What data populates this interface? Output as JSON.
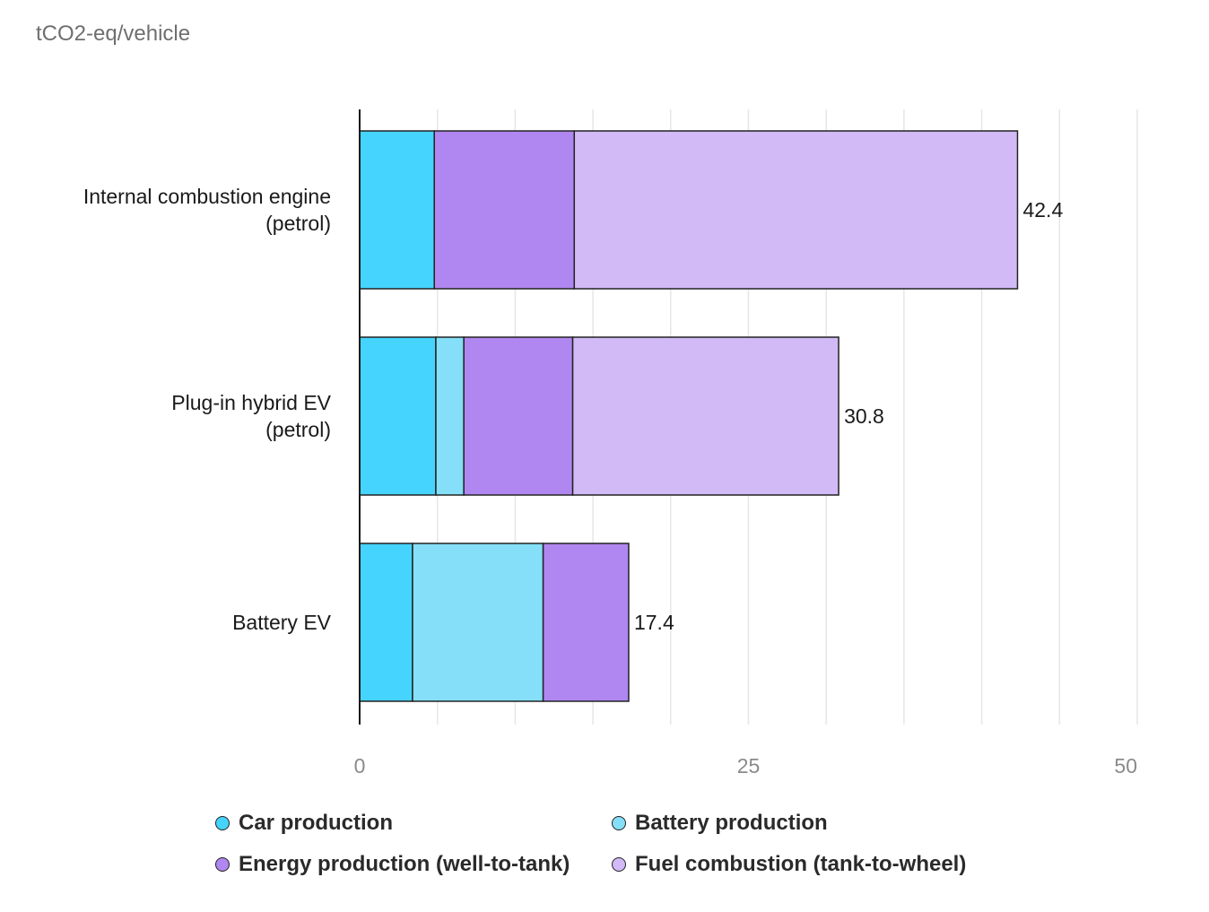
{
  "chart_data": {
    "type": "bar",
    "orientation": "horizontal",
    "stacked": true,
    "unit_label": "tCO2-eq/vehicle",
    "categories": [
      [
        "Internal combustion engine",
        "(petrol)"
      ],
      [
        "Plug-in hybrid EV",
        "(petrol)"
      ],
      [
        "Battery EV"
      ]
    ],
    "series": [
      {
        "name": "Car production",
        "color": "#45d4fe",
        "values": [
          4.8,
          4.9,
          3.4
        ]
      },
      {
        "name": "Battery production",
        "color": "#85dff8",
        "values": [
          0,
          1.8,
          8.4
        ]
      },
      {
        "name": "Energy production (well-to-tank)",
        "color": "#b087f0",
        "values": [
          9.0,
          7.0,
          5.5
        ]
      },
      {
        "name": "Fuel combustion (tank-to-wheel)",
        "color": "#d1baf6",
        "values": [
          28.5,
          17.1,
          0
        ]
      }
    ],
    "totals": [
      "42.4",
      "30.8",
      "17.4"
    ],
    "xlim": [
      0,
      50
    ],
    "xticks": [
      0,
      25,
      50
    ],
    "grid": true,
    "legend_position": "bottom"
  }
}
